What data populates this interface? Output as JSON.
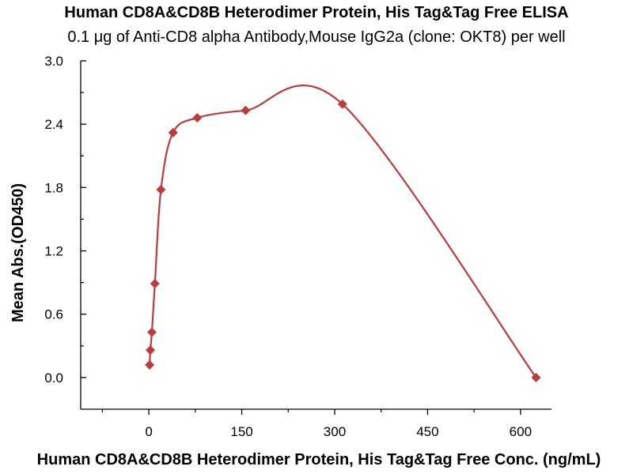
{
  "chart_data": {
    "type": "scatter",
    "title": "Human CD8A&CD8B Heterodimer Protein, His Tag&Tag Free ELISA",
    "subtitle": "0.1 μg of Anti-CD8 alpha Antibody,Mouse IgG2a (clone: OKT8) per well",
    "xlabel": "Human CD8A&CD8B Heterodimer Protein, His Tag&Tag Free Conc. (ng/mL)",
    "ylabel": "Mean Abs.(OD450)",
    "xlim": [
      -110,
      650
    ],
    "ylim": [
      -0.3,
      3.0
    ],
    "xticks": [
      0,
      150,
      300,
      450,
      600
    ],
    "yticks": [
      0.0,
      0.6,
      1.2,
      1.8,
      2.4,
      3.0
    ],
    "x_tick_labels": [
      "0",
      "150",
      "300",
      "450",
      "600"
    ],
    "y_tick_labels": [
      "0.0",
      "0.6",
      "1.2",
      "1.8",
      "2.4",
      "3.0"
    ],
    "grid": false,
    "legend": "none",
    "color": "#c0393b",
    "marker": "diamond",
    "fit_curve": true,
    "series": [
      {
        "x": [
          1.22,
          2.44,
          4.88,
          9.77,
          19.53,
          39.06,
          78.13,
          156.25,
          312.5,
          625
        ],
        "y": [
          0.12,
          0.26,
          0.43,
          0.89,
          1.78,
          2.32,
          2.46,
          2.53,
          2.59,
          0.0
        ]
      }
    ]
  }
}
